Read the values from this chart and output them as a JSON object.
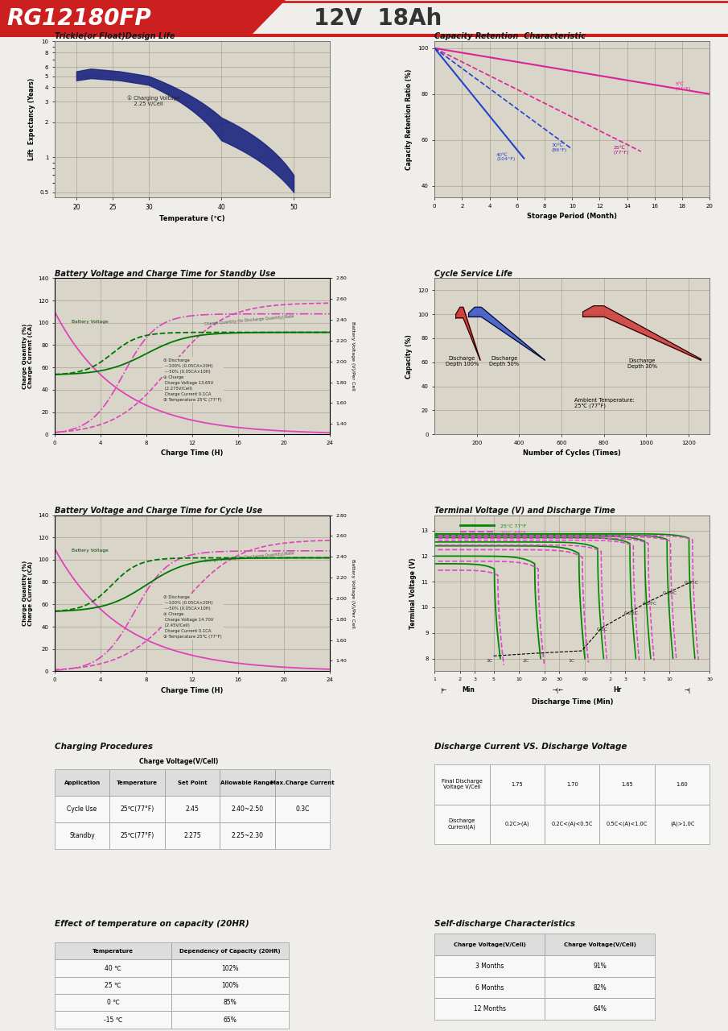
{
  "title_model": "RG12180FP",
  "title_spec": "12V  18Ah",
  "page_bg": "#f0eeeb",
  "header_red": "#cc2020",
  "chart_bg": "#d9d5c8",
  "grid_color": "#a09585",
  "section1_title": "Trickle(or Float)Design Life",
  "section2_title": "Capacity Retention  Characteristic",
  "section3_title": "Battery Voltage and Charge Time for Standby Use",
  "section4_title": "Cycle Service Life",
  "section5_title": "Battery Voltage and Charge Time for Cycle Use",
  "section6_title": "Terminal Voltage (V) and Discharge Time",
  "section7_title": "Charging Procedures",
  "section8_title": "Discharge Current VS. Discharge Voltage",
  "section9_title": "Effect of temperature on capacity (20HR)",
  "section10_title": "Self-discharge Characteristics",
  "green25": "#008800",
  "pink20": "#cc44cc",
  "blue_line": "#2233cc",
  "pink_line": "#dd44aa",
  "dark_blue_fill": "#1a2580",
  "red_fill": "#cc1111",
  "blue_fill": "#2244cc",
  "red_fill2": "#cc2222"
}
